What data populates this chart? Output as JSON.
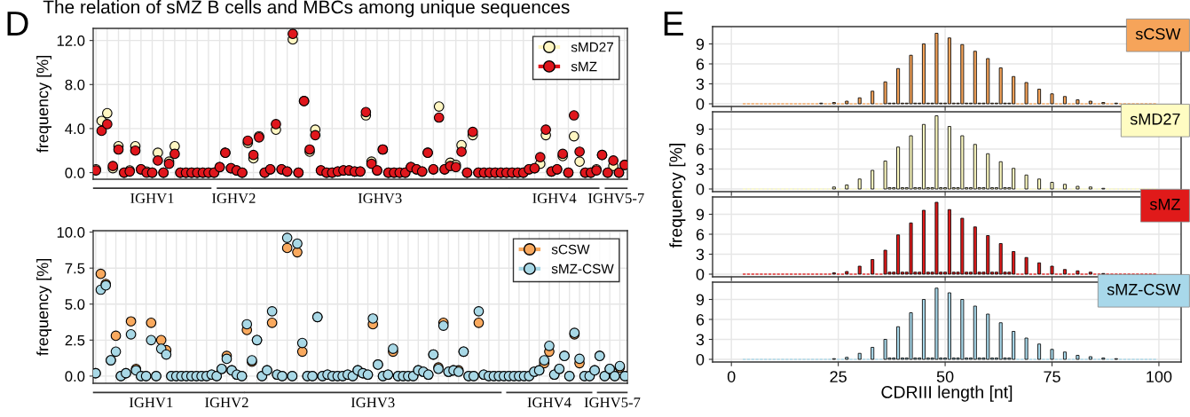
{
  "chart_data": [
    {
      "type": "scatter",
      "categories": [
        null,
        null,
        null,
        null,
        null,
        null,
        null,
        null,
        null,
        null,
        null,
        null,
        null,
        null,
        null,
        null,
        null,
        null,
        null,
        null,
        null,
        null,
        null,
        null,
        null,
        null,
        null,
        null,
        null,
        null,
        null,
        null,
        null,
        null,
        null,
        null,
        null,
        null,
        null,
        null,
        null,
        null,
        null,
        null,
        null,
        null,
        null,
        null,
        null,
        null,
        null,
        null,
        null,
        null,
        null,
        null,
        null,
        null,
        null,
        null,
        null,
        null,
        null,
        null,
        null,
        null,
        null,
        null,
        null,
        null,
        null,
        null,
        null,
        null,
        null,
        null,
        null,
        null,
        null,
        null,
        null,
        null,
        null,
        null,
        null,
        null,
        null,
        null,
        null,
        null,
        null,
        null,
        null,
        null,
        null
      ],
      "series": [
        {
          "name": "sMD27",
          "color": "#fff6c2",
          "values": [
            0.3,
            4.7,
            5.4,
            0.4,
            2.4,
            0,
            0.2,
            2.4,
            0.3,
            0.1,
            0,
            1.8,
            0,
            1.0,
            2.4,
            0,
            0,
            0,
            0,
            0,
            0,
            0,
            0.5,
            1.8,
            0.4,
            0.2,
            0,
            2.7,
            1.3,
            3.3,
            0,
            0.3,
            3.9,
            0.3,
            0.1,
            12.1,
            0,
            6.5,
            1.9,
            3.9,
            0.2,
            0,
            0,
            0.1,
            0.2,
            0.2,
            0.1,
            0.1,
            5.2,
            1.0,
            0.2,
            2.1,
            0,
            0,
            0,
            0,
            0.5,
            0.3,
            0.1,
            1.8,
            0.3,
            6.0,
            0.3,
            0.9,
            0.7,
            2.5,
            0,
            3.4,
            0,
            0,
            0,
            0,
            0,
            0,
            0,
            0,
            0,
            0.3,
            0.4,
            0.8,
            3.4,
            0.1,
            0.3,
            1.5,
            0,
            3.3,
            1.0,
            0,
            0,
            0.3,
            1.6,
            0,
            0.6,
            0,
            0.7
          ]
        },
        {
          "name": "sMZ",
          "color": "#e0161c",
          "values": [
            0.2,
            3.8,
            4.4,
            0.6,
            2.1,
            0,
            0.1,
            2.0,
            0.3,
            0,
            0,
            1.1,
            0,
            0.8,
            1.7,
            0,
            0,
            0,
            0,
            0,
            0,
            0,
            0.5,
            1.8,
            0.4,
            0.2,
            0,
            2.9,
            1.6,
            3.2,
            0,
            0.3,
            4.4,
            0.3,
            0.1,
            12.6,
            0,
            6.5,
            2.1,
            3.4,
            0.2,
            0,
            0,
            0.1,
            0.2,
            0.2,
            0.1,
            0.1,
            5.5,
            0.8,
            0.2,
            2.1,
            0,
            0,
            0,
            0,
            0.5,
            0.3,
            0.1,
            1.8,
            0.3,
            5.0,
            0.3,
            0.6,
            0.5,
            1.9,
            0,
            3.7,
            0,
            0,
            0,
            0,
            0,
            0,
            0,
            0,
            0,
            0.3,
            0.4,
            1.4,
            3.9,
            0.1,
            0.3,
            1.7,
            0,
            5.2,
            1.9,
            0,
            0,
            0.2,
            1.6,
            0,
            1.1,
            0,
            0.7
          ]
        }
      ],
      "ylabel": "frequency [%]",
      "ylim": [
        -0.6,
        13.1
      ],
      "yticks": [
        {
          "value": 0,
          "label": "0.0"
        },
        {
          "value": 4,
          "label": "4.0"
        },
        {
          "value": 8,
          "label": "8.0"
        },
        {
          "value": 12,
          "label": "12.0"
        }
      ],
      "grid": true,
      "legend": "top right",
      "marker": "circle",
      "tick_labels": "y",
      "annotations": [
        "The relation of sMZ B cells and MBCs among unique sequences",
        "D",
        "IGHV1",
        "IGHV2",
        "IGHV3",
        "IGHV4",
        "IGHV5-7"
      ]
    },
    {
      "type": "scatter",
      "categories": [
        null,
        null,
        null,
        null,
        null,
        null,
        null,
        null,
        null,
        null,
        null,
        null,
        null,
        null,
        null,
        null,
        null,
        null,
        null,
        null,
        null,
        null,
        null,
        null,
        null,
        null,
        null,
        null,
        null,
        null,
        null,
        null,
        null,
        null,
        null,
        null,
        null,
        null,
        null,
        null,
        null,
        null,
        null,
        null,
        null,
        null,
        null,
        null,
        null,
        null,
        null,
        null,
        null,
        null,
        null,
        null,
        null,
        null,
        null,
        null,
        null,
        null,
        null,
        null,
        null,
        null,
        null,
        null,
        null,
        null,
        null,
        null,
        null,
        null,
        null,
        null,
        null,
        null,
        null,
        null,
        null,
        null,
        null,
        null,
        null,
        null,
        null,
        null,
        null,
        null,
        null,
        null,
        null,
        null,
        null,
        null,
        null,
        null,
        null,
        null,
        null,
        null,
        null,
        null,
        null,
        null
      ],
      "series": [
        {
          "name": "sCSW",
          "color": "#f9a95e",
          "values": [
            0.2,
            7.1,
            6.4,
            1.1,
            2.8,
            0,
            0.2,
            3.8,
            0.5,
            0,
            0,
            3.7,
            0,
            2.5,
            1.8,
            0,
            0,
            0,
            0,
            0,
            0,
            0,
            0,
            0.1,
            0,
            0.5,
            1.4,
            0.4,
            0.1,
            0,
            3.2,
            1.0,
            2.5,
            0,
            0.4,
            3.7,
            0.1,
            0,
            8.9,
            0,
            8.6,
            1.7,
            0,
            0,
            4.1,
            0,
            0.1,
            0,
            0,
            0,
            0.1,
            0,
            0.4,
            0.2,
            0.1,
            3.6,
            0.8,
            0,
            0.1,
            1.7,
            0,
            0,
            0,
            0,
            0.4,
            0.3,
            0.1,
            1.5,
            0.6,
            3.7,
            0.3,
            0.4,
            0.4,
            1.7,
            0,
            0,
            3.7,
            0.1,
            0,
            0,
            0,
            0,
            0,
            0,
            0,
            0,
            0,
            0.3,
            0.4,
            0.9,
            1.7,
            0.1,
            0.5,
            1.4,
            0,
            2.9,
            0.9,
            0,
            0,
            0.4,
            1.4,
            0,
            0.5,
            0,
            0.6,
            0
          ]
        },
        {
          "name": "sMZ-CSW",
          "color": "#a8d8e6",
          "values": [
            0.2,
            6.0,
            6.3,
            1.1,
            1.7,
            0,
            0.2,
            2.9,
            0.4,
            0,
            0,
            2.5,
            0,
            1.9,
            1.5,
            0,
            0,
            0,
            0,
            0,
            0,
            0,
            0,
            0.1,
            0,
            0.5,
            1.2,
            0.4,
            0.1,
            0,
            3.6,
            1.1,
            2.5,
            0,
            0.4,
            4.5,
            0.1,
            0,
            9.6,
            0,
            9.2,
            2.3,
            0,
            0,
            4.1,
            0,
            0.1,
            0,
            0,
            0,
            0.1,
            0,
            0.4,
            0.2,
            0.1,
            4.0,
            0.8,
            0,
            0.1,
            1.9,
            0,
            0,
            0,
            0,
            0.4,
            0.3,
            0.1,
            1.5,
            0.5,
            3.5,
            0.3,
            0.4,
            0.3,
            1.7,
            0,
            0,
            4.5,
            0.1,
            0,
            0,
            0,
            0,
            0,
            0,
            0,
            0,
            0,
            0.3,
            0.4,
            1.1,
            2.1,
            0.1,
            0.5,
            1.4,
            0,
            3.0,
            1.2,
            0,
            0,
            0.4,
            1.4,
            0,
            0.5,
            0,
            0.7,
            0
          ]
        }
      ],
      "ylabel": "frequency [%]",
      "ylim": [
        -0.5,
        10.1
      ],
      "yticks": [
        {
          "value": 0,
          "label": "0.0"
        },
        {
          "value": 2.5,
          "label": "2.5"
        },
        {
          "value": 5,
          "label": "5.0"
        },
        {
          "value": 7.5,
          "label": "7.5"
        },
        {
          "value": 10,
          "label": "10.0"
        }
      ],
      "grid": true,
      "legend": "top right",
      "marker": "circle",
      "tick_labels": "y",
      "annotations": [
        "IGHV1",
        "IGHV2",
        "IGHV3",
        "IGHV4",
        "IGHV5-7"
      ]
    },
    {
      "type": "bar",
      "x": [
        3,
        4,
        5,
        6,
        7,
        8,
        9,
        10,
        11,
        12,
        13,
        14,
        15,
        16,
        17,
        18,
        19,
        20,
        21,
        22,
        23,
        24,
        25,
        26,
        27,
        28,
        29,
        30,
        31,
        32,
        33,
        34,
        35,
        36,
        37,
        38,
        39,
        40,
        41,
        42,
        43,
        44,
        45,
        46,
        47,
        48,
        49,
        50,
        51,
        52,
        53,
        54,
        55,
        56,
        57,
        58,
        59,
        60,
        61,
        62,
        63,
        64,
        65,
        66,
        67,
        68,
        69,
        70,
        71,
        72,
        73,
        74,
        75,
        76,
        77,
        78,
        79,
        80,
        81,
        82,
        83,
        84,
        85,
        86,
        87,
        88,
        89,
        90,
        91,
        92,
        93,
        94,
        95,
        96,
        97,
        98,
        99
      ],
      "series": [
        {
          "name": "sCSW",
          "color": "#f6a45a",
          "values": [
            0,
            0,
            0,
            0,
            0,
            0,
            0,
            0,
            0,
            0,
            0,
            0,
            0,
            0,
            0,
            0,
            0,
            0,
            0.1,
            0,
            0,
            0.2,
            0,
            0,
            0.4,
            0,
            0,
            0.9,
            0,
            0,
            1.9,
            0,
            0,
            3.3,
            0.1,
            0.1,
            5.3,
            0.1,
            0.1,
            7.3,
            0.1,
            0.1,
            9.0,
            0.1,
            0.1,
            10.6,
            0.1,
            0.1,
            9.9,
            0.1,
            0.1,
            8.9,
            0.1,
            0.1,
            7.9,
            0.1,
            0.1,
            6.8,
            0.1,
            0.1,
            5.4,
            0.1,
            0.1,
            4.1,
            0,
            0,
            3.2,
            0,
            0,
            2.2,
            0,
            0,
            1.5,
            0,
            0,
            1.1,
            0,
            0,
            0.6,
            0,
            0,
            0.4,
            0,
            0,
            0.2,
            0,
            0,
            0.1,
            0,
            0,
            0,
            0,
            0,
            0,
            0,
            0,
            0
          ]
        }
      ],
      "xlim": [
        -4.4,
        105.2
      ],
      "ylim": [
        -0.4,
        11.6
      ],
      "xticks": [
        0,
        25,
        50,
        75,
        100
      ],
      "yticks": [
        0,
        3,
        6,
        9
      ],
      "grid": true,
      "tick_labels": "y",
      "annotations": [
        "E"
      ]
    },
    {
      "type": "bar",
      "x": [
        3,
        4,
        5,
        6,
        7,
        8,
        9,
        10,
        11,
        12,
        13,
        14,
        15,
        16,
        17,
        18,
        19,
        20,
        21,
        22,
        23,
        24,
        25,
        26,
        27,
        28,
        29,
        30,
        31,
        32,
        33,
        34,
        35,
        36,
        37,
        38,
        39,
        40,
        41,
        42,
        43,
        44,
        45,
        46,
        47,
        48,
        49,
        50,
        51,
        52,
        53,
        54,
        55,
        56,
        57,
        58,
        59,
        60,
        61,
        62,
        63,
        64,
        65,
        66,
        67,
        68,
        69,
        70,
        71,
        72,
        73,
        74,
        75,
        76,
        77,
        78,
        79,
        80,
        81,
        82,
        83,
        84,
        85,
        86,
        87,
        88,
        89,
        90,
        91,
        92,
        93,
        94,
        95,
        96,
        97,
        98,
        99
      ],
      "series": [
        {
          "name": "sMD27",
          "color": "#fffcc2",
          "values": [
            0,
            0,
            0,
            0,
            0,
            0,
            0,
            0,
            0,
            0,
            0,
            0,
            0,
            0,
            0,
            0,
            0,
            0,
            0,
            0,
            0,
            0.3,
            0,
            0,
            0.6,
            0,
            0,
            1.5,
            0,
            0,
            2.8,
            0,
            0,
            4.2,
            0.2,
            0.2,
            6.3,
            0.2,
            0.2,
            8.0,
            0.2,
            0.2,
            9.7,
            0.2,
            0.2,
            11.0,
            0.2,
            0.2,
            9.4,
            0.2,
            0.2,
            8.0,
            0.2,
            0.2,
            6.7,
            0.2,
            0.2,
            5.3,
            0.2,
            0.2,
            4.1,
            0.2,
            0.2,
            3.1,
            0,
            0,
            2.1,
            0,
            0,
            1.5,
            0,
            0,
            1.0,
            0,
            0,
            0.7,
            0,
            0,
            0.4,
            0,
            0,
            0.3,
            0,
            0,
            0.1,
            0,
            0,
            0,
            0,
            0,
            0,
            0,
            0,
            0,
            0,
            0,
            0
          ]
        }
      ],
      "xlim": [
        -4.4,
        105.2
      ],
      "ylim": [
        -0.4,
        11.6
      ],
      "xticks": [
        0,
        25,
        50,
        75,
        100
      ],
      "yticks": [
        0,
        3,
        6,
        9
      ],
      "grid": true,
      "tick_labels": "y",
      "ylabel": "frequency [%]"
    },
    {
      "type": "bar",
      "x": [
        3,
        4,
        5,
        6,
        7,
        8,
        9,
        10,
        11,
        12,
        13,
        14,
        15,
        16,
        17,
        18,
        19,
        20,
        21,
        22,
        23,
        24,
        25,
        26,
        27,
        28,
        29,
        30,
        31,
        32,
        33,
        34,
        35,
        36,
        37,
        38,
        39,
        40,
        41,
        42,
        43,
        44,
        45,
        46,
        47,
        48,
        49,
        50,
        51,
        52,
        53,
        54,
        55,
        56,
        57,
        58,
        59,
        60,
        61,
        62,
        63,
        64,
        65,
        66,
        67,
        68,
        69,
        70,
        71,
        72,
        73,
        74,
        75,
        76,
        77,
        78,
        79,
        80,
        81,
        82,
        83,
        84,
        85,
        86,
        87,
        88,
        89,
        90,
        91,
        92,
        93,
        94,
        95,
        96,
        97,
        98,
        99
      ],
      "series": [
        {
          "name": "sMZ",
          "color": "#e01a1a",
          "values": [
            0,
            0,
            0,
            0,
            0,
            0,
            0,
            0,
            0,
            0,
            0,
            0,
            0,
            0,
            0,
            0,
            0,
            0,
            0,
            0,
            0,
            0.2,
            0,
            0,
            0.4,
            0,
            0,
            1.2,
            0,
            0,
            2.2,
            0,
            0,
            3.6,
            0.3,
            0.3,
            5.9,
            0.3,
            0.3,
            7.7,
            0.3,
            0.3,
            9.6,
            0.3,
            0.3,
            10.8,
            0.3,
            0.3,
            9.7,
            0.3,
            0.3,
            8.4,
            0.3,
            0.3,
            7.1,
            0.3,
            0.3,
            5.8,
            0.3,
            0.3,
            4.6,
            0.3,
            0.3,
            3.4,
            0,
            0,
            2.5,
            0,
            0,
            1.7,
            0,
            0,
            1.2,
            0,
            0,
            0.7,
            0,
            0,
            0.5,
            0,
            0,
            0.3,
            0,
            0,
            0.1,
            0,
            0,
            0,
            0,
            0,
            0,
            0,
            0,
            0,
            0,
            0,
            0
          ]
        }
      ],
      "xlim": [
        -4.4,
        105.2
      ],
      "ylim": [
        -0.4,
        11.6
      ],
      "xticks": [
        0,
        25,
        50,
        75,
        100
      ],
      "yticks": [
        0,
        3,
        6,
        9
      ],
      "grid": true,
      "tick_labels": "y"
    },
    {
      "type": "bar",
      "x": [
        3,
        4,
        5,
        6,
        7,
        8,
        9,
        10,
        11,
        12,
        13,
        14,
        15,
        16,
        17,
        18,
        19,
        20,
        21,
        22,
        23,
        24,
        25,
        26,
        27,
        28,
        29,
        30,
        31,
        32,
        33,
        34,
        35,
        36,
        37,
        38,
        39,
        40,
        41,
        42,
        43,
        44,
        45,
        46,
        47,
        48,
        49,
        50,
        51,
        52,
        53,
        54,
        55,
        56,
        57,
        58,
        59,
        60,
        61,
        62,
        63,
        64,
        65,
        66,
        67,
        68,
        69,
        70,
        71,
        72,
        73,
        74,
        75,
        76,
        77,
        78,
        79,
        80,
        81,
        82,
        83,
        84,
        85,
        86,
        87,
        88,
        89,
        90,
        91,
        92,
        93,
        94,
        95,
        96,
        97,
        98,
        99
      ],
      "series": [
        {
          "name": "sMZ-CSW",
          "color": "#a8d8ea",
          "values": [
            0,
            0,
            0,
            0,
            0,
            0,
            0,
            0,
            0,
            0,
            0,
            0,
            0,
            0,
            0,
            0,
            0,
            0,
            0,
            0,
            0,
            0.1,
            0,
            0,
            0.3,
            0,
            0,
            0.9,
            0,
            0,
            1.8,
            0,
            0,
            3.0,
            0.2,
            0.2,
            4.9,
            0.2,
            0.2,
            7.0,
            0.2,
            0.2,
            9.0,
            0.2,
            0.2,
            10.7,
            0.2,
            0.2,
            10.0,
            0.2,
            0.2,
            9.0,
            0.2,
            0.2,
            8.0,
            0.2,
            0.2,
            6.8,
            0.2,
            0.2,
            5.5,
            0.2,
            0.2,
            4.2,
            0,
            0,
            3.2,
            0,
            0,
            2.3,
            0,
            0,
            1.5,
            0,
            0,
            1.1,
            0,
            0,
            0.6,
            0,
            0,
            0.4,
            0,
            0,
            0.2,
            0,
            0,
            0.1,
            0,
            0,
            0,
            0,
            0,
            0,
            0,
            0,
            0
          ]
        }
      ],
      "xlim": [
        -4.4,
        105.2
      ],
      "ylim": [
        -0.4,
        11.6
      ],
      "xticks": [
        0,
        25,
        50,
        75,
        100
      ],
      "yticks": [
        0,
        3,
        6,
        9
      ],
      "grid": true,
      "xlabel": "CDRIII length [nt]"
    }
  ]
}
